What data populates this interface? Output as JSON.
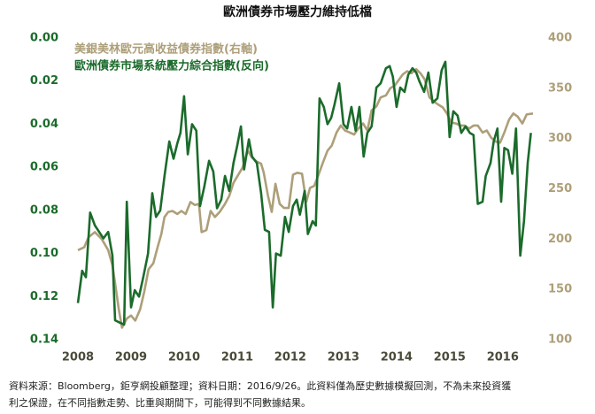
{
  "chart_data": {
    "type": "line",
    "title": "歐洲債券市場壓力維持低檔",
    "notes": [
      "資料來源：Bloomberg，鉅亨網投顧整理；資料日期：2016/9/26。此資料僅為歷史數據模擬回測，不為未來投資獲",
      "利之保證，在不同指數走勢、比重與期間下，可能得到不同數據結果。"
    ],
    "xlim": [
      2007.7,
      2016.62
    ],
    "xticks": [
      2008,
      2009,
      2010,
      2011,
      2012,
      2013,
      2014,
      2015,
      2016
    ],
    "ylim": [
      0.14,
      0
    ],
    "yticks": [
      {
        "value": 0,
        "label": "0.00"
      },
      {
        "value": 0.02,
        "label": "0.02"
      },
      {
        "value": 0.04,
        "label": "0.04"
      },
      {
        "value": 0.06,
        "label": "0.06"
      },
      {
        "value": 0.08,
        "label": "0.08"
      },
      {
        "value": 0.1,
        "label": "0.10"
      },
      {
        "value": 0.12,
        "label": "0.12"
      },
      {
        "value": 0.14,
        "label": "0.14"
      }
    ],
    "y2lim": [
      100,
      400
    ],
    "y2ticks": [
      100,
      150,
      200,
      250,
      300,
      350,
      400
    ],
    "legend": "upper left",
    "series": [
      {
        "name": "美銀美林歐元高收益債券指數(右軸)",
        "color": "#ad9f79",
        "axis": "y2",
        "x": [
          2008.0,
          2008.12,
          2008.2,
          2008.32,
          2008.45,
          2008.57,
          2008.65,
          2008.7,
          2008.77,
          2008.83,
          2008.92,
          2009.0,
          2009.08,
          2009.17,
          2009.25,
          2009.33,
          2009.42,
          2009.5,
          2009.57,
          2009.63,
          2009.7,
          2009.78,
          2009.87,
          2009.95,
          2010.03,
          2010.12,
          2010.2,
          2010.28,
          2010.33,
          2010.42,
          2010.5,
          2010.58,
          2010.67,
          2010.77,
          2010.85,
          2010.93,
          2011.02,
          2011.1,
          2011.2,
          2011.28,
          2011.37,
          2011.45,
          2011.5,
          2011.58,
          2011.65,
          2011.72,
          2011.8,
          2011.88,
          2011.97,
          2012.05,
          2012.13,
          2012.22,
          2012.3,
          2012.37,
          2012.45,
          2012.53,
          2012.62,
          2012.7,
          2012.78,
          2012.87,
          2012.95,
          2013.03,
          2013.12,
          2013.2,
          2013.28,
          2013.37,
          2013.45,
          2013.53,
          2013.62,
          2013.7,
          2013.8,
          2013.88,
          2013.97,
          2014.05,
          2014.12,
          2014.2,
          2014.28,
          2014.37,
          2014.45,
          2014.53,
          2014.62,
          2014.7,
          2014.78,
          2014.87,
          2014.95,
          2015.03,
          2015.12,
          2015.2,
          2015.28,
          2015.37,
          2015.45,
          2015.53,
          2015.62,
          2015.7,
          2015.78,
          2015.87,
          2015.95,
          2016.03,
          2016.12,
          2016.2,
          2016.28,
          2016.37,
          2016.45,
          2016.57
        ],
        "values": [
          189,
          192,
          202,
          207,
          200,
          189,
          174,
          156,
          130,
          112,
          121,
          124,
          119,
          130,
          148,
          170,
          176,
          192,
          205,
          222,
          227,
          228,
          225,
          228,
          225,
          237,
          234,
          235,
          207,
          209,
          228,
          222,
          227,
          235,
          243,
          256,
          264,
          271,
          288,
          281,
          277,
          275,
          266,
          243,
          227,
          255,
          235,
          231,
          231,
          264,
          266,
          265,
          237,
          251,
          253,
          264,
          277,
          288,
          293,
          306,
          313,
          308,
          306,
          304,
          310,
          315,
          308,
          328,
          332,
          341,
          343,
          350,
          353,
          359,
          364,
          367,
          365,
          369,
          365,
          359,
          341,
          337,
          334,
          331,
          325,
          316,
          315,
          313,
          313,
          310,
          313,
          313,
          306,
          308,
          301,
          297,
          296,
          306,
          319,
          325,
          322,
          315,
          324,
          325
        ]
      },
      {
        "name": "歐洲債券市場系統壓力綜合指數(反向)",
        "color": "#1b6b2b",
        "axis": "y",
        "x": [
          2008.0,
          2008.08,
          2008.15,
          2008.23,
          2008.32,
          2008.4,
          2008.48,
          2008.57,
          2008.65,
          2008.7,
          2008.78,
          2008.87,
          2008.92,
          2009.0,
          2009.07,
          2009.15,
          2009.23,
          2009.32,
          2009.4,
          2009.47,
          2009.55,
          2009.63,
          2009.72,
          2009.8,
          2009.87,
          2009.93,
          2010.0,
          2010.07,
          2010.15,
          2010.23,
          2010.3,
          2010.38,
          2010.47,
          2010.55,
          2010.62,
          2010.7,
          2010.77,
          2010.85,
          2010.93,
          2011.0,
          2011.07,
          2011.13,
          2011.22,
          2011.28,
          2011.37,
          2011.45,
          2011.52,
          2011.6,
          2011.67,
          2011.73,
          2011.82,
          2011.9,
          2011.97,
          2012.05,
          2012.12,
          2012.18,
          2012.27,
          2012.33,
          2012.42,
          2012.48,
          2012.55,
          2012.63,
          2012.7,
          2012.77,
          2012.83,
          2012.92,
          2013.0,
          2013.07,
          2013.15,
          2013.23,
          2013.3,
          2013.38,
          2013.45,
          2013.53,
          2013.62,
          2013.7,
          2013.8,
          2013.87,
          2013.93,
          2014.0,
          2014.07,
          2014.15,
          2014.22,
          2014.3,
          2014.37,
          2014.43,
          2014.52,
          2014.6,
          2014.68,
          2014.77,
          2014.85,
          2014.92,
          2015.0,
          2015.07,
          2015.15,
          2015.22,
          2015.3,
          2015.38,
          2015.45,
          2015.53,
          2015.62,
          2015.68,
          2015.77,
          2015.83,
          2015.9,
          2015.97,
          2016.03,
          2016.1,
          2016.18,
          2016.25,
          2016.33,
          2016.4,
          2016.47,
          2016.53
        ],
        "values": [
          0.123,
          0.108,
          0.111,
          0.081,
          0.087,
          0.09,
          0.093,
          0.09,
          0.101,
          0.131,
          0.132,
          0.133,
          0.076,
          0.125,
          0.117,
          0.12,
          0.111,
          0.1,
          0.072,
          0.083,
          0.08,
          0.064,
          0.048,
          0.056,
          0.049,
          0.044,
          0.027,
          0.054,
          0.04,
          0.043,
          0.078,
          0.069,
          0.057,
          0.062,
          0.079,
          0.075,
          0.064,
          0.071,
          0.058,
          0.05,
          0.041,
          0.061,
          0.047,
          0.055,
          0.058,
          0.072,
          0.089,
          0.09,
          0.125,
          0.1,
          0.101,
          0.083,
          0.09,
          0.078,
          0.075,
          0.082,
          0.071,
          0.091,
          0.085,
          0.087,
          0.028,
          0.032,
          0.04,
          0.037,
          0.031,
          0.021,
          0.04,
          0.042,
          0.032,
          0.043,
          0.032,
          0.055,
          0.044,
          0.041,
          0.023,
          0.021,
          0.014,
          0.013,
          0.018,
          0.032,
          0.023,
          0.025,
          0.017,
          0.014,
          0.016,
          0.02,
          0.025,
          0.016,
          0.03,
          0.028,
          0.015,
          0.011,
          0.046,
          0.034,
          0.036,
          0.044,
          0.041,
          0.044,
          0.045,
          0.077,
          0.076,
          0.064,
          0.058,
          0.048,
          0.042,
          0.076,
          0.051,
          0.052,
          0.063,
          0.042,
          0.101,
          0.085,
          0.058,
          0.044
        ]
      }
    ]
  }
}
